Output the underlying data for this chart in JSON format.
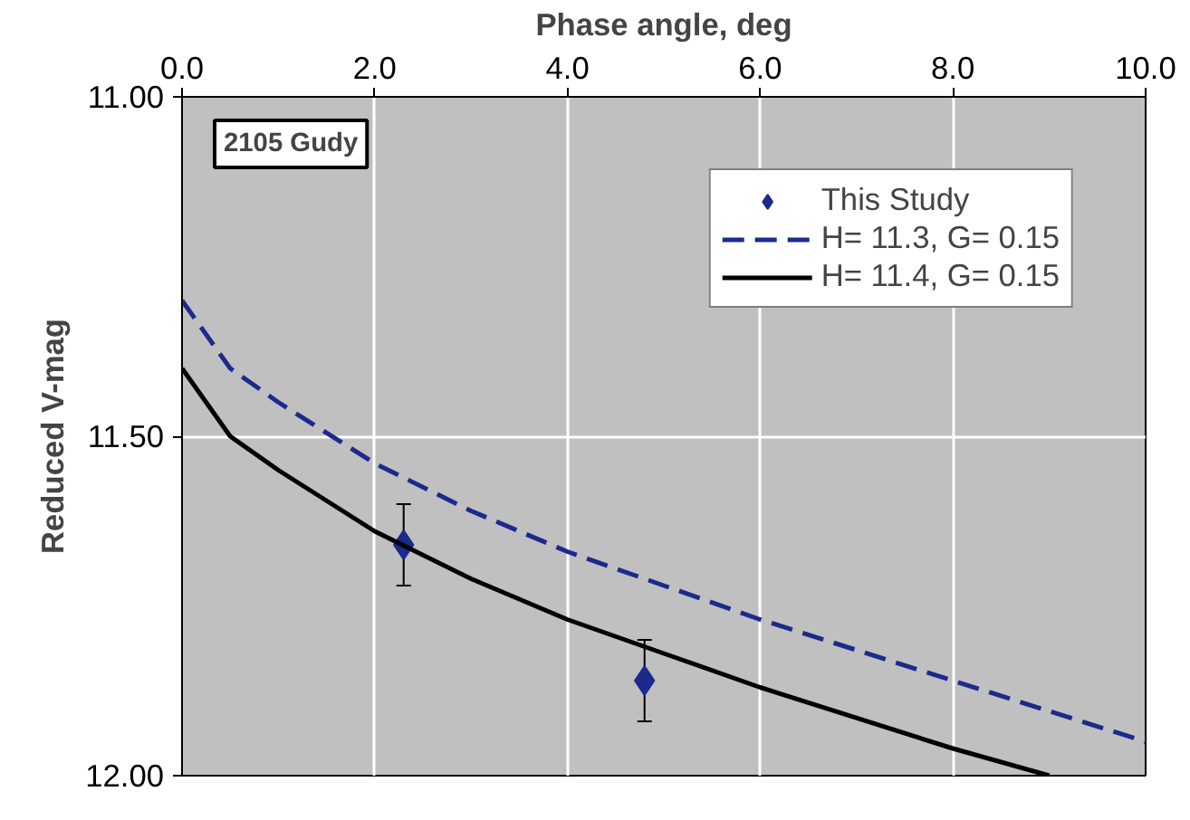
{
  "chart_data": {
    "type": "scatter",
    "xlabel": "Phase angle, deg",
    "ylabel": "Reduced V-mag",
    "annotations": [
      "2105 Gudy"
    ],
    "xlim": [
      0,
      10
    ],
    "xticks": [
      {
        "value": 0,
        "label": "0.0"
      },
      {
        "value": 2,
        "label": "2.0"
      },
      {
        "value": 4,
        "label": "4.0"
      },
      {
        "value": 6,
        "label": "6.0"
      },
      {
        "value": 8,
        "label": "8.0"
      },
      {
        "value": 10,
        "label": "10.0"
      }
    ],
    "ylim": [
      12.0,
      11.0
    ],
    "yticks": [
      {
        "value": 11,
        "label": "11.00"
      },
      {
        "value": 11.5,
        "label": "11.50"
      },
      {
        "value": 12,
        "label": "12.00"
      }
    ],
    "grid": true,
    "legend": "top right",
    "series": [
      {
        "name": "This Study",
        "marker": "diamond",
        "color": "#1c2a8c",
        "x": [
          2.3,
          4.8
        ],
        "values": [
          11.66,
          11.86
        ],
        "errors": [
          0.06,
          0.06
        ]
      },
      {
        "name": "H= 11.3, G= 0.15",
        "type": "line",
        "line_style": "dashed",
        "color": "#1c2a8c",
        "x": [
          0,
          0.5,
          1,
          2,
          3,
          4,
          5,
          6,
          8,
          10
        ],
        "values": [
          11.3,
          11.4,
          11.45,
          11.54,
          11.61,
          11.67,
          11.72,
          11.77,
          11.86,
          11.95
        ]
      },
      {
        "name": "H= 11.4, G= 0.15",
        "type": "line",
        "line_style": "solid",
        "color": "#000000",
        "x": [
          0,
          0.5,
          1,
          2,
          3,
          4,
          5,
          6,
          8,
          9
        ],
        "values": [
          11.4,
          11.5,
          11.55,
          11.64,
          11.71,
          11.77,
          11.82,
          11.87,
          11.96,
          12.0
        ]
      }
    ]
  }
}
